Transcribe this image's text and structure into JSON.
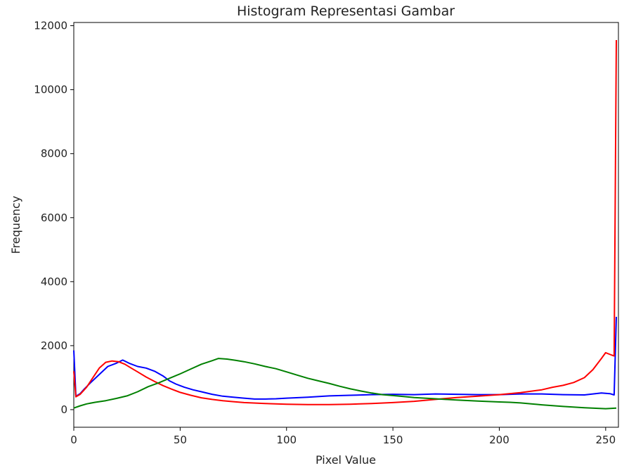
{
  "chart_data": {
    "type": "line",
    "title": "Histogram Representasi Gambar",
    "xlabel": "Pixel Value",
    "ylabel": "Frequency",
    "xlim": [
      0,
      256
    ],
    "ylim": [
      -550,
      12100
    ],
    "xticks": [
      0,
      50,
      100,
      150,
      200,
      250
    ],
    "yticks": [
      0,
      2000,
      4000,
      6000,
      8000,
      10000,
      12000
    ],
    "grid": false,
    "legend": "none",
    "series": [
      {
        "color": "#0000ff",
        "points": [
          [
            0,
            1850
          ],
          [
            1,
            420
          ],
          [
            3,
            500
          ],
          [
            5,
            650
          ],
          [
            8,
            850
          ],
          [
            12,
            1100
          ],
          [
            16,
            1350
          ],
          [
            20,
            1450
          ],
          [
            23,
            1550
          ],
          [
            26,
            1450
          ],
          [
            30,
            1350
          ],
          [
            34,
            1300
          ],
          [
            38,
            1200
          ],
          [
            42,
            1050
          ],
          [
            45,
            900
          ],
          [
            48,
            800
          ],
          [
            52,
            700
          ],
          [
            56,
            620
          ],
          [
            60,
            560
          ],
          [
            65,
            480
          ],
          [
            70,
            420
          ],
          [
            75,
            390
          ],
          [
            80,
            360
          ],
          [
            85,
            330
          ],
          [
            90,
            330
          ],
          [
            95,
            340
          ],
          [
            100,
            360
          ],
          [
            110,
            390
          ],
          [
            120,
            430
          ],
          [
            130,
            450
          ],
          [
            140,
            470
          ],
          [
            150,
            480
          ],
          [
            160,
            470
          ],
          [
            170,
            490
          ],
          [
            180,
            480
          ],
          [
            190,
            470
          ],
          [
            200,
            470
          ],
          [
            210,
            490
          ],
          [
            220,
            490
          ],
          [
            230,
            470
          ],
          [
            240,
            460
          ],
          [
            248,
            520
          ],
          [
            252,
            500
          ],
          [
            254,
            460
          ],
          [
            255,
            2900
          ]
        ]
      },
      {
        "color": "#ff0000",
        "points": [
          [
            0,
            1200
          ],
          [
            1,
            400
          ],
          [
            3,
            480
          ],
          [
            6,
            700
          ],
          [
            9,
            1000
          ],
          [
            12,
            1300
          ],
          [
            15,
            1480
          ],
          [
            18,
            1520
          ],
          [
            21,
            1500
          ],
          [
            24,
            1420
          ],
          [
            27,
            1300
          ],
          [
            30,
            1180
          ],
          [
            34,
            1020
          ],
          [
            38,
            880
          ],
          [
            42,
            750
          ],
          [
            46,
            640
          ],
          [
            50,
            540
          ],
          [
            55,
            450
          ],
          [
            60,
            370
          ],
          [
            65,
            320
          ],
          [
            70,
            280
          ],
          [
            75,
            250
          ],
          [
            80,
            220
          ],
          [
            90,
            190
          ],
          [
            100,
            170
          ],
          [
            110,
            160
          ],
          [
            120,
            160
          ],
          [
            130,
            170
          ],
          [
            140,
            190
          ],
          [
            150,
            220
          ],
          [
            160,
            260
          ],
          [
            170,
            320
          ],
          [
            180,
            380
          ],
          [
            190,
            420
          ],
          [
            200,
            470
          ],
          [
            210,
            530
          ],
          [
            220,
            620
          ],
          [
            225,
            700
          ],
          [
            230,
            760
          ],
          [
            235,
            850
          ],
          [
            240,
            1000
          ],
          [
            244,
            1250
          ],
          [
            248,
            1600
          ],
          [
            250,
            1780
          ],
          [
            253,
            1700
          ],
          [
            254,
            1680
          ],
          [
            255,
            11550
          ]
        ]
      },
      {
        "color": "#008000",
        "points": [
          [
            0,
            50
          ],
          [
            3,
            120
          ],
          [
            6,
            180
          ],
          [
            10,
            230
          ],
          [
            15,
            280
          ],
          [
            20,
            350
          ],
          [
            25,
            430
          ],
          [
            30,
            560
          ],
          [
            35,
            720
          ],
          [
            40,
            840
          ],
          [
            45,
            980
          ],
          [
            50,
            1120
          ],
          [
            55,
            1270
          ],
          [
            60,
            1420
          ],
          [
            65,
            1530
          ],
          [
            68,
            1600
          ],
          [
            72,
            1580
          ],
          [
            76,
            1540
          ],
          [
            80,
            1500
          ],
          [
            85,
            1430
          ],
          [
            90,
            1350
          ],
          [
            95,
            1280
          ],
          [
            100,
            1180
          ],
          [
            105,
            1080
          ],
          [
            110,
            980
          ],
          [
            115,
            900
          ],
          [
            120,
            820
          ],
          [
            125,
            730
          ],
          [
            130,
            650
          ],
          [
            135,
            580
          ],
          [
            140,
            520
          ],
          [
            145,
            470
          ],
          [
            150,
            440
          ],
          [
            155,
            410
          ],
          [
            160,
            380
          ],
          [
            165,
            360
          ],
          [
            170,
            340
          ],
          [
            180,
            300
          ],
          [
            190,
            270
          ],
          [
            200,
            240
          ],
          [
            205,
            230
          ],
          [
            210,
            210
          ],
          [
            220,
            150
          ],
          [
            230,
            100
          ],
          [
            240,
            60
          ],
          [
            250,
            30
          ],
          [
            255,
            50
          ]
        ]
      }
    ]
  }
}
